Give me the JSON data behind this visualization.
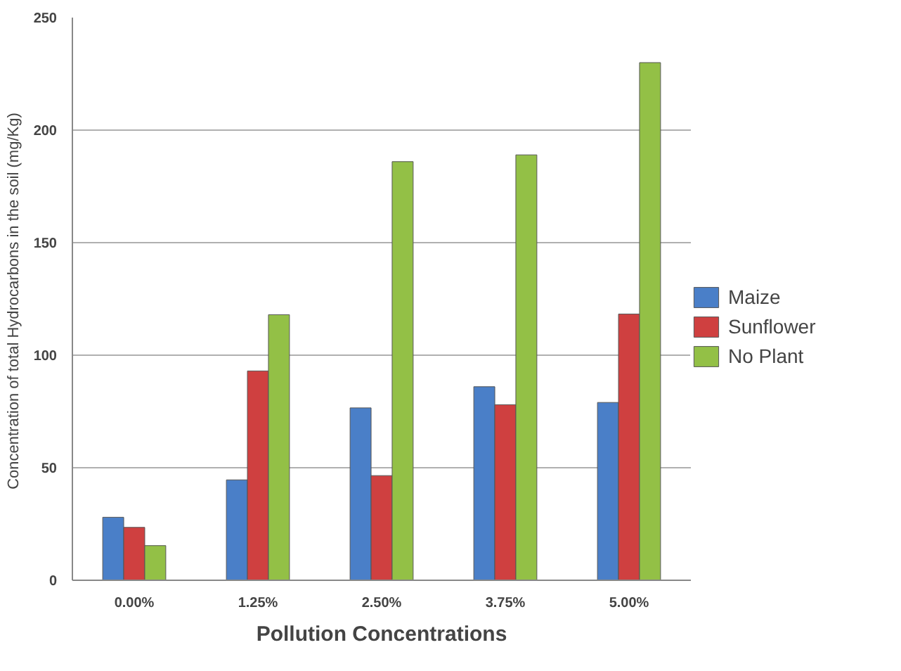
{
  "chart_data": {
    "type": "bar",
    "xlabel": "Pollution Concentrations",
    "ylabel": "Concentration of total Hydrocarbons in the soil  (mg/Kg)",
    "categories": [
      "0.00%",
      "1.25%",
      "2.50%",
      "3.75%",
      "5.00%"
    ],
    "series": [
      {
        "name": "Maize",
        "color": "#4a7fc8",
        "values": [
          28,
          44.6,
          76.6,
          86,
          79
        ]
      },
      {
        "name": "Sunflower",
        "color": "#cf4040",
        "values": [
          23.5,
          93,
          46.5,
          78,
          118.3
        ]
      },
      {
        "name": "No Plant",
        "color": "#93c046",
        "values": [
          15.4,
          118,
          186,
          189,
          230
        ]
      }
    ],
    "ylim": [
      0,
      250
    ],
    "yticks": [
      0,
      50,
      100,
      150,
      200,
      250
    ],
    "grid": "y",
    "legend": "right"
  }
}
